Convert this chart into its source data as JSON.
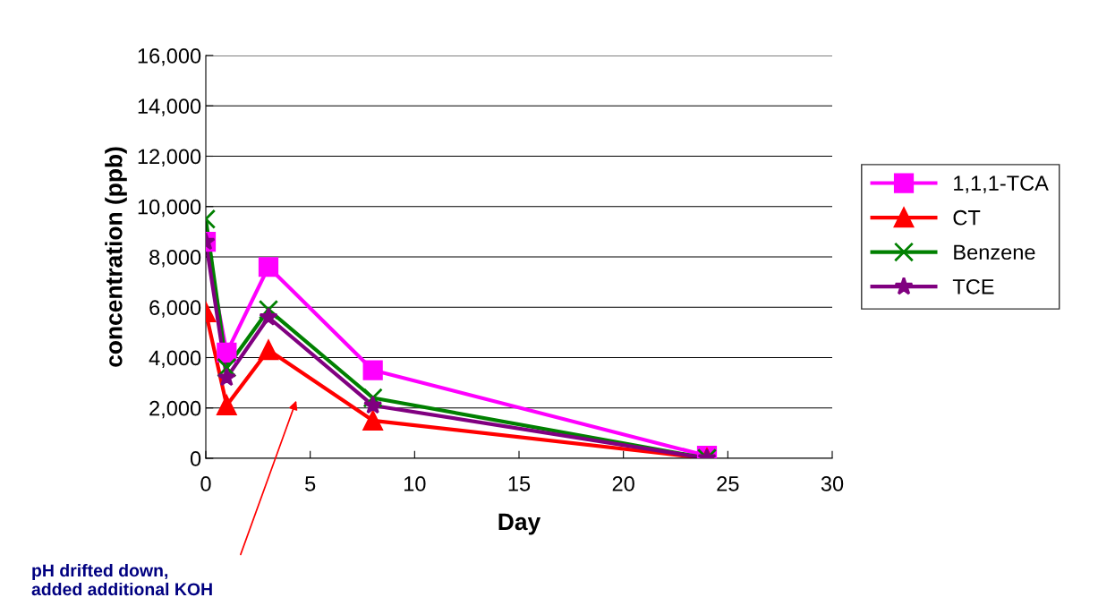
{
  "chart_data": {
    "type": "line",
    "xlabel": "Day",
    "ylabel": "concentration (ppb)",
    "xlim": [
      0,
      30
    ],
    "xticks": [
      0,
      5,
      10,
      15,
      20,
      25,
      30
    ],
    "ylim": [
      0,
      16000
    ],
    "yticks": [
      0,
      {
        "value": 2000,
        "label": "2,000"
      },
      {
        "value": 4000,
        "label": "4,000"
      },
      {
        "value": 6000,
        "label": "6,000"
      },
      {
        "value": 8000,
        "label": "8,000"
      },
      {
        "value": 10000,
        "label": "10,000"
      },
      {
        "value": 12000,
        "label": "12,000"
      },
      {
        "value": 14000,
        "label": "14,000"
      },
      {
        "value": 16000,
        "label": "16,000"
      }
    ],
    "x": [
      0,
      1,
      3,
      8,
      24
    ],
    "series": [
      {
        "name": "1,1,1-TCA",
        "color": "#ff00ff",
        "marker": "square",
        "values": [
          8600,
          4200,
          7600,
          3500,
          100
        ]
      },
      {
        "name": "CT",
        "color": "#ff0000",
        "marker": "triangle",
        "values": [
          5800,
          2100,
          4300,
          1500,
          0
        ]
      },
      {
        "name": "Benzene",
        "color": "#008000",
        "marker": "cross",
        "values": [
          9500,
          3600,
          5900,
          2400,
          0
        ]
      },
      {
        "name": "TCE",
        "color": "#800080",
        "marker": "star",
        "values": [
          8600,
          3200,
          5600,
          2100,
          0
        ]
      }
    ],
    "grid": "y",
    "legend": "right",
    "line_style": "solid",
    "annotations": [
      "pH drifted down,\nadded additional KOH"
    ]
  }
}
